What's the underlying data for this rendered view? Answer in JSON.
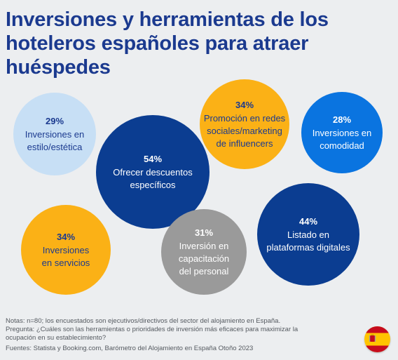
{
  "title": "Inversiones y herramientas de los hoteleros españoles para atraer huéspedes",
  "chart_data": {
    "type": "bubble",
    "unit": "%",
    "items": [
      {
        "value": 29,
        "pct_label": "29%",
        "lines": [
          "Inversiones en",
          "estilo/estética"
        ],
        "color": "#c7dff5",
        "text_color": "#1b3a8f"
      },
      {
        "value": 54,
        "pct_label": "54%",
        "lines": [
          "Ofrecer descuentos",
          "específicos"
        ],
        "color": "#0b3d91",
        "text_color": "#ffffff"
      },
      {
        "value": 34,
        "pct_label": "34%",
        "lines": [
          "Promoción en redes",
          "sociales/marketing",
          "de influencers"
        ],
        "color": "#fbb116",
        "text_color": "#1b3a8f"
      },
      {
        "value": 28,
        "pct_label": "28%",
        "lines": [
          "Inversiones en",
          "comodidad"
        ],
        "color": "#0a74e0",
        "text_color": "#ffffff"
      },
      {
        "value": 34,
        "pct_label": "34%",
        "lines": [
          "Inversiones",
          "en servicios"
        ],
        "color": "#fbb116",
        "text_color": "#1b3a8f"
      },
      {
        "value": 31,
        "pct_label": "31%",
        "lines": [
          "Inversión en",
          "capacitación",
          "del personal"
        ],
        "color": "#9a9a9a",
        "text_color": "#ffffff"
      },
      {
        "value": 44,
        "pct_label": "44%",
        "lines": [
          "Listado en",
          "plataformas digitales"
        ],
        "color": "#0b3d91",
        "text_color": "#ffffff"
      }
    ]
  },
  "notes": {
    "line1": "Notas: n=80; los encuestados son ejecutivos/directivos del sector del alojamiento en España.",
    "line2": "Pregunta: ¿Cuáles son las herramientas o prioridades de inversión más eficaces para maximizar la",
    "line3": "ocupación en su establecimiento?"
  },
  "source": "Fuentes: Statista y Booking.com, Barómetro del Alojamiento en España Otoño 2023",
  "flag": {
    "icon": "spain-flag-icon",
    "red": "#c60b1e",
    "yellow": "#ffc400"
  }
}
